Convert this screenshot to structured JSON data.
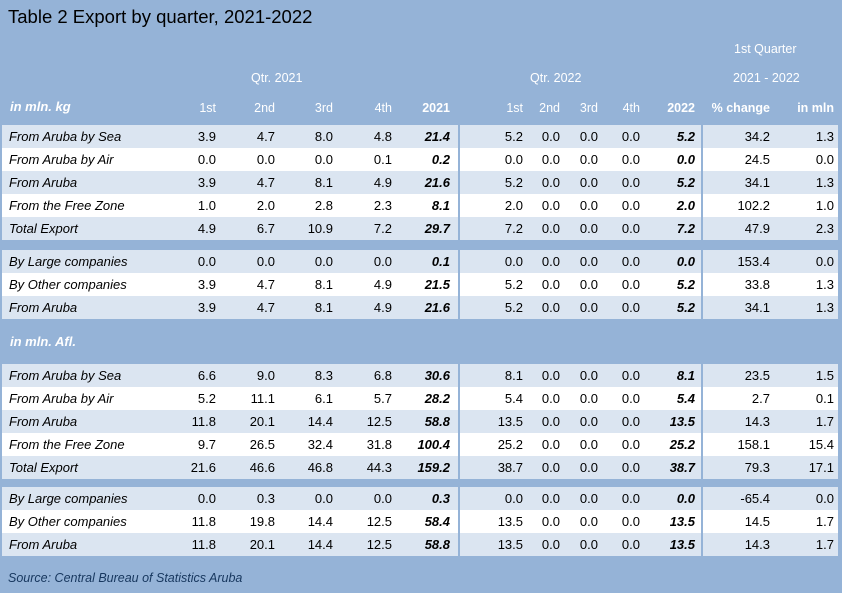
{
  "title": "Table 2 Export by quarter, 2021-2022",
  "header": {
    "first_quarter": "1st Quarter",
    "qtr_2021": "Qtr. 2021",
    "qtr_2022": "Qtr. 2022",
    "range": "2021 - 2022"
  },
  "columns": [
    "1st",
    "2nd",
    "3rd",
    "4th",
    "2021",
    "1st",
    "2nd",
    "3rd",
    "4th",
    "2022",
    "% change",
    "in mln"
  ],
  "sections": [
    {
      "label": "in mln. kg",
      "groups": [
        [
          {
            "label": "From Aruba by Sea",
            "values": [
              "3.9",
              "4.7",
              "8.0",
              "4.8",
              "21.4",
              "5.2",
              "0.0",
              "0.0",
              "0.0",
              "5.2",
              "34.2",
              "1.3"
            ]
          },
          {
            "label": "From Aruba by Air",
            "values": [
              "0.0",
              "0.0",
              "0.0",
              "0.1",
              "0.2",
              "0.0",
              "0.0",
              "0.0",
              "0.0",
              "0.0",
              "24.5",
              "0.0"
            ]
          },
          {
            "label": "From Aruba",
            "values": [
              "3.9",
              "4.7",
              "8.1",
              "4.9",
              "21.6",
              "5.2",
              "0.0",
              "0.0",
              "0.0",
              "5.2",
              "34.1",
              "1.3"
            ]
          },
          {
            "label": "From the Free Zone",
            "values": [
              "1.0",
              "2.0",
              "2.8",
              "2.3",
              "8.1",
              "2.0",
              "0.0",
              "0.0",
              "0.0",
              "2.0",
              "102.2",
              "1.0"
            ]
          },
          {
            "label": "Total Export",
            "values": [
              "4.9",
              "6.7",
              "10.9",
              "7.2",
              "29.7",
              "7.2",
              "0.0",
              "0.0",
              "0.0",
              "7.2",
              "47.9",
              "2.3"
            ]
          }
        ],
        [
          {
            "label": "By Large companies",
            "values": [
              "0.0",
              "0.0",
              "0.0",
              "0.0",
              "0.1",
              "0.0",
              "0.0",
              "0.0",
              "0.0",
              "0.0",
              "153.4",
              "0.0"
            ]
          },
          {
            "label": "By Other companies",
            "values": [
              "3.9",
              "4.7",
              "8.1",
              "4.9",
              "21.5",
              "5.2",
              "0.0",
              "0.0",
              "0.0",
              "5.2",
              "33.8",
              "1.3"
            ]
          },
          {
            "label": "From Aruba",
            "values": [
              "3.9",
              "4.7",
              "8.1",
              "4.9",
              "21.6",
              "5.2",
              "0.0",
              "0.0",
              "0.0",
              "5.2",
              "34.1",
              "1.3"
            ]
          }
        ]
      ]
    },
    {
      "label": "in mln. Afl.",
      "groups": [
        [
          {
            "label": "From Aruba by Sea",
            "values": [
              "6.6",
              "9.0",
              "8.3",
              "6.8",
              "30.6",
              "8.1",
              "0.0",
              "0.0",
              "0.0",
              "8.1",
              "23.5",
              "1.5"
            ]
          },
          {
            "label": "From Aruba by Air",
            "values": [
              "5.2",
              "11.1",
              "6.1",
              "5.7",
              "28.2",
              "5.4",
              "0.0",
              "0.0",
              "0.0",
              "5.4",
              "2.7",
              "0.1"
            ]
          },
          {
            "label": "From Aruba",
            "values": [
              "11.8",
              "20.1",
              "14.4",
              "12.5",
              "58.8",
              "13.5",
              "0.0",
              "0.0",
              "0.0",
              "13.5",
              "14.3",
              "1.7"
            ]
          },
          {
            "label": "From the Free Zone",
            "values": [
              "9.7",
              "26.5",
              "32.4",
              "31.8",
              "100.4",
              "25.2",
              "0.0",
              "0.0",
              "0.0",
              "25.2",
              "158.1",
              "15.4"
            ]
          },
          {
            "label": "Total Export",
            "values": [
              "21.6",
              "46.6",
              "46.8",
              "44.3",
              "159.2",
              "38.7",
              "0.0",
              "0.0",
              "0.0",
              "38.7",
              "79.3",
              "17.1"
            ]
          }
        ],
        [
          {
            "label": "By Large companies",
            "values": [
              "0.0",
              "0.3",
              "0.0",
              "0.0",
              "0.3",
              "0.0",
              "0.0",
              "0.0",
              "0.0",
              "0.0",
              "-65.4",
              "0.0"
            ]
          },
          {
            "label": "By Other companies",
            "values": [
              "11.8",
              "19.8",
              "14.4",
              "12.5",
              "58.4",
              "13.5",
              "0.0",
              "0.0",
              "0.0",
              "13.5",
              "14.5",
              "1.7"
            ]
          },
          {
            "label": "From Aruba",
            "values": [
              "11.8",
              "20.1",
              "14.4",
              "12.5",
              "58.8",
              "13.5",
              "0.0",
              "0.0",
              "0.0",
              "13.5",
              "14.3",
              "1.7"
            ]
          }
        ]
      ]
    }
  ],
  "source": "Source: Central Bureau of Statistics Aruba"
}
